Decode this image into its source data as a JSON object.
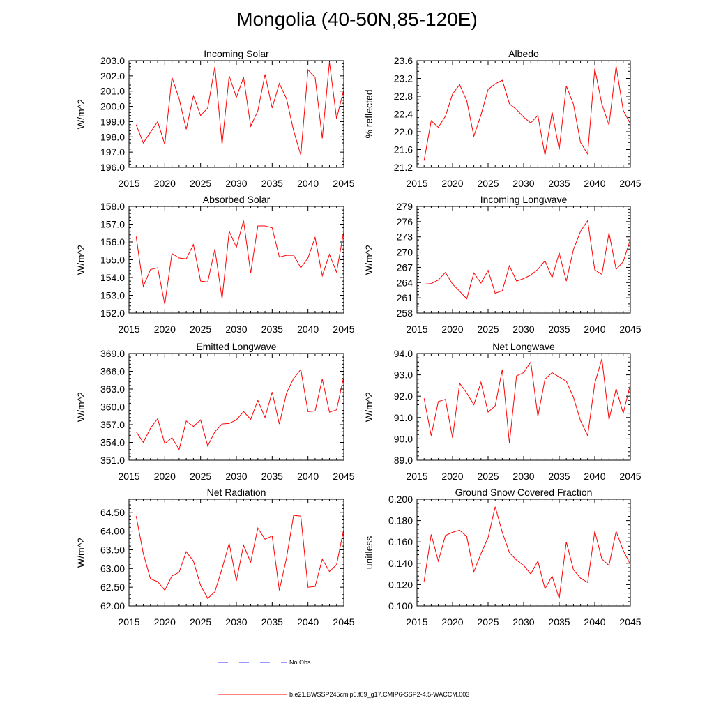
{
  "title": "Mongolia (40-50N,85-120E)",
  "colors": {
    "model": "#ff0000",
    "obs": "#3333ff",
    "axis": "#000000"
  },
  "legend": {
    "obs_label": "No Obs",
    "model_label": "b.e21.BWSSP245cmip6.f09_g17.CMIP6-SSP2-4.5-WACCM.003"
  },
  "chart_data": [
    {
      "type": "line",
      "title": "Incoming Solar",
      "xlabel": "",
      "ylabel": "W/m^2",
      "xlim": [
        2015,
        2045
      ],
      "ylim": [
        196,
        203
      ],
      "xticks": [
        2015,
        2020,
        2025,
        2030,
        2035,
        2040,
        2045
      ],
      "yticks": [
        "196.0",
        "197.0",
        "198.0",
        "199.0",
        "200.0",
        "201.0",
        "202.0",
        "203.0"
      ],
      "yminor": 0.2,
      "x": [
        2016,
        2017,
        2018,
        2019,
        2020,
        2021,
        2022,
        2023,
        2024,
        2025,
        2026,
        2027,
        2028,
        2029,
        2030,
        2031,
        2032,
        2033,
        2034,
        2035,
        2036,
        2037,
        2038,
        2039,
        2040,
        2041,
        2042,
        2043,
        2044,
        2045
      ],
      "series": [
        {
          "name": "b.e21.BWSSP245cmip6.f09_g17.CMIP6-SSP2-4.5-WACCM.003",
          "values": [
            198.8,
            197.6,
            198.3,
            199.0,
            197.5,
            201.9,
            200.5,
            198.5,
            200.7,
            199.4,
            199.9,
            202.6,
            197.5,
            202.0,
            200.6,
            201.9,
            198.7,
            199.7,
            202.1,
            199.9,
            201.5,
            200.5,
            198.4,
            196.8,
            202.4,
            201.9,
            197.9,
            202.9,
            199.2,
            201.1
          ]
        }
      ]
    },
    {
      "type": "line",
      "title": "Albedo",
      "xlabel": "",
      "ylabel": "% reflected",
      "xlim": [
        2015,
        2045
      ],
      "ylim": [
        21.2,
        23.6
      ],
      "xticks": [
        2015,
        2020,
        2025,
        2030,
        2035,
        2040,
        2045
      ],
      "yticks": [
        "21.2",
        "21.6",
        "22.0",
        "22.4",
        "22.8",
        "23.2",
        "23.6"
      ],
      "yminor": 0.08,
      "x": [
        2016,
        2017,
        2018,
        2019,
        2020,
        2021,
        2022,
        2023,
        2024,
        2025,
        2026,
        2027,
        2028,
        2029,
        2030,
        2031,
        2032,
        2033,
        2034,
        2035,
        2036,
        2037,
        2038,
        2039,
        2040,
        2041,
        2042,
        2043,
        2044,
        2045
      ],
      "series": [
        {
          "name": "b.e21.BWSSP245cmip6.f09_g17.CMIP6-SSP2-4.5-WACCM.003",
          "values": [
            21.35,
            22.25,
            22.1,
            22.35,
            22.85,
            23.06,
            22.7,
            21.9,
            22.38,
            22.95,
            23.08,
            23.16,
            22.63,
            22.5,
            22.33,
            22.2,
            22.37,
            21.47,
            22.44,
            21.6,
            23.03,
            22.62,
            21.76,
            21.5,
            23.42,
            22.62,
            22.15,
            23.48,
            22.48,
            22.18
          ]
        }
      ]
    },
    {
      "type": "line",
      "title": "Absorbed Solar",
      "xlabel": "",
      "ylabel": "W/m^2",
      "xlim": [
        2015,
        2045
      ],
      "ylim": [
        152,
        158
      ],
      "xticks": [
        2015,
        2020,
        2025,
        2030,
        2035,
        2040,
        2045
      ],
      "yticks": [
        "152.0",
        "153.0",
        "154.0",
        "155.0",
        "156.0",
        "157.0",
        "158.0"
      ],
      "yminor": 0.2,
      "x": [
        2016,
        2017,
        2018,
        2019,
        2020,
        2021,
        2022,
        2023,
        2024,
        2025,
        2026,
        2027,
        2028,
        2029,
        2030,
        2031,
        2032,
        2033,
        2034,
        2035,
        2036,
        2037,
        2038,
        2039,
        2040,
        2041,
        2042,
        2043,
        2044,
        2045
      ],
      "series": [
        {
          "name": "b.e21.BWSSP245cmip6.f09_g17.CMIP6-SSP2-4.5-WACCM.003",
          "values": [
            156.3,
            153.5,
            154.45,
            154.55,
            152.5,
            155.35,
            155.1,
            155.05,
            155.85,
            153.8,
            153.75,
            155.6,
            152.8,
            156.6,
            155.7,
            157.2,
            154.25,
            156.9,
            156.9,
            156.8,
            155.15,
            155.25,
            155.25,
            154.55,
            155.1,
            156.25,
            154.1,
            155.3,
            154.3,
            156.6
          ]
        }
      ]
    },
    {
      "type": "line",
      "title": "Incoming Longwave",
      "xlabel": "",
      "ylabel": "W/m^2",
      "xlim": [
        2015,
        2045
      ],
      "ylim": [
        258,
        279
      ],
      "xticks": [
        2015,
        2020,
        2025,
        2030,
        2035,
        2040,
        2045
      ],
      "yticks": [
        "258",
        "261",
        "264",
        "267",
        "270",
        "273",
        "276",
        "279"
      ],
      "yminor": 0.6,
      "x": [
        2016,
        2017,
        2018,
        2019,
        2020,
        2021,
        2022,
        2023,
        2024,
        2025,
        2026,
        2027,
        2028,
        2029,
        2030,
        2031,
        2032,
        2033,
        2034,
        2035,
        2036,
        2037,
        2038,
        2039,
        2040,
        2041,
        2042,
        2043,
        2044,
        2045
      ],
      "series": [
        {
          "name": "b.e21.BWSSP245cmip6.f09_g17.CMIP6-SSP2-4.5-WACCM.003",
          "values": [
            263.7,
            263.8,
            264.5,
            266.0,
            263.7,
            262.3,
            260.8,
            265.9,
            263.9,
            266.4,
            261.9,
            262.4,
            267.3,
            264.3,
            264.8,
            265.5,
            266.6,
            268.3,
            265.0,
            269.8,
            264.3,
            270.5,
            274.1,
            276.2,
            266.5,
            265.6,
            273.8,
            266.6,
            268.1,
            272.5
          ]
        }
      ]
    },
    {
      "type": "line",
      "title": "Emitted Longwave",
      "xlabel": "",
      "ylabel": "W/m^2",
      "xlim": [
        2015,
        2045
      ],
      "ylim": [
        351,
        369
      ],
      "xticks": [
        2015,
        2020,
        2025,
        2030,
        2035,
        2040,
        2045
      ],
      "yticks": [
        "351.0",
        "354.0",
        "357.0",
        "360.0",
        "363.0",
        "366.0",
        "369.0"
      ],
      "yminor": 0.6,
      "x": [
        2016,
        2017,
        2018,
        2019,
        2020,
        2021,
        2022,
        2023,
        2024,
        2025,
        2026,
        2027,
        2028,
        2029,
        2030,
        2031,
        2032,
        2033,
        2034,
        2035,
        2036,
        2037,
        2038,
        2039,
        2040,
        2041,
        2042,
        2043,
        2044,
        2045
      ],
      "series": [
        {
          "name": "b.e21.BWSSP245cmip6.f09_g17.CMIP6-SSP2-4.5-WACCM.003",
          "values": [
            355.8,
            354.0,
            356.4,
            358.0,
            353.8,
            354.8,
            352.8,
            357.6,
            356.7,
            357.8,
            353.4,
            355.8,
            357.1,
            357.2,
            357.8,
            359.2,
            357.9,
            361.1,
            358.2,
            362.5,
            357.1,
            362.3,
            364.8,
            366.3,
            359.2,
            359.3,
            364.7,
            359.1,
            359.5,
            365.1
          ]
        }
      ]
    },
    {
      "type": "line",
      "title": "Net Longwave",
      "xlabel": "",
      "ylabel": "W/m^2",
      "xlim": [
        2015,
        2045
      ],
      "ylim": [
        89,
        94
      ],
      "xticks": [
        2015,
        2020,
        2025,
        2030,
        2035,
        2040,
        2045
      ],
      "yticks": [
        "89.0",
        "90.0",
        "91.0",
        "92.0",
        "93.0",
        "94.0"
      ],
      "yminor": 0.2,
      "x": [
        2016,
        2017,
        2018,
        2019,
        2020,
        2021,
        2022,
        2023,
        2024,
        2025,
        2026,
        2027,
        2028,
        2029,
        2030,
        2031,
        2032,
        2033,
        2034,
        2035,
        2036,
        2037,
        2038,
        2039,
        2040,
        2041,
        2042,
        2043,
        2044,
        2045
      ],
      "series": [
        {
          "name": "b.e21.BWSSP245cmip6.f09_g17.CMIP6-SSP2-4.5-WACCM.003",
          "values": [
            91.9,
            90.15,
            91.75,
            91.85,
            90.05,
            92.6,
            92.15,
            91.6,
            92.65,
            91.25,
            91.55,
            93.25,
            89.8,
            92.95,
            93.1,
            93.6,
            91.05,
            92.8,
            93.1,
            92.9,
            92.7,
            91.95,
            90.85,
            90.15,
            92.6,
            93.75,
            90.9,
            92.35,
            91.2,
            92.55
          ]
        }
      ]
    },
    {
      "type": "line",
      "title": "Net Radiation",
      "xlabel": "",
      "ylabel": "W/m^2",
      "xlim": [
        2015,
        2045
      ],
      "ylim": [
        62,
        64.85
      ],
      "xticks": [
        2015,
        2020,
        2025,
        2030,
        2035,
        2040,
        2045
      ],
      "yticks": [
        "62.00",
        "62.50",
        "63.00",
        "63.50",
        "64.00",
        "64.50"
      ],
      "yminor": 0.1,
      "x": [
        2016,
        2017,
        2018,
        2019,
        2020,
        2021,
        2022,
        2023,
        2024,
        2025,
        2026,
        2027,
        2028,
        2029,
        2030,
        2031,
        2032,
        2033,
        2034,
        2035,
        2036,
        2037,
        2038,
        2039,
        2040,
        2041,
        2042,
        2043,
        2044,
        2045
      ],
      "series": [
        {
          "name": "b.e21.BWSSP245cmip6.f09_g17.CMIP6-SSP2-4.5-WACCM.003",
          "values": [
            64.4,
            63.4,
            62.72,
            62.65,
            62.42,
            62.8,
            62.9,
            63.45,
            63.2,
            62.55,
            62.2,
            62.38,
            63.0,
            63.67,
            62.67,
            63.62,
            63.17,
            64.08,
            63.78,
            63.87,
            62.42,
            63.28,
            64.42,
            64.4,
            62.5,
            62.52,
            63.25,
            62.92,
            63.1,
            64.05
          ]
        }
      ]
    },
    {
      "type": "line",
      "title": "Ground Snow Covered Fraction",
      "xlabel": "",
      "ylabel": "unitless",
      "xlim": [
        2015,
        2045
      ],
      "ylim": [
        0.1,
        0.2
      ],
      "xticks": [
        2015,
        2020,
        2025,
        2030,
        2035,
        2040,
        2045
      ],
      "yticks": [
        "0.100",
        "0.120",
        "0.140",
        "0.160",
        "0.180",
        "0.200"
      ],
      "yminor": 0.004,
      "x": [
        2016,
        2017,
        2018,
        2019,
        2020,
        2021,
        2022,
        2023,
        2024,
        2025,
        2026,
        2027,
        2028,
        2029,
        2030,
        2031,
        2032,
        2033,
        2034,
        2035,
        2036,
        2037,
        2038,
        2039,
        2040,
        2041,
        2042,
        2043,
        2044,
        2045
      ],
      "series": [
        {
          "name": "b.e21.BWSSP245cmip6.f09_g17.CMIP6-SSP2-4.5-WACCM.003",
          "values": [
            0.123,
            0.167,
            0.142,
            0.166,
            0.169,
            0.171,
            0.165,
            0.132,
            0.149,
            0.164,
            0.193,
            0.169,
            0.15,
            0.143,
            0.138,
            0.13,
            0.142,
            0.116,
            0.128,
            0.107,
            0.16,
            0.134,
            0.126,
            0.122,
            0.17,
            0.144,
            0.138,
            0.17,
            0.152,
            0.139
          ]
        }
      ]
    }
  ]
}
